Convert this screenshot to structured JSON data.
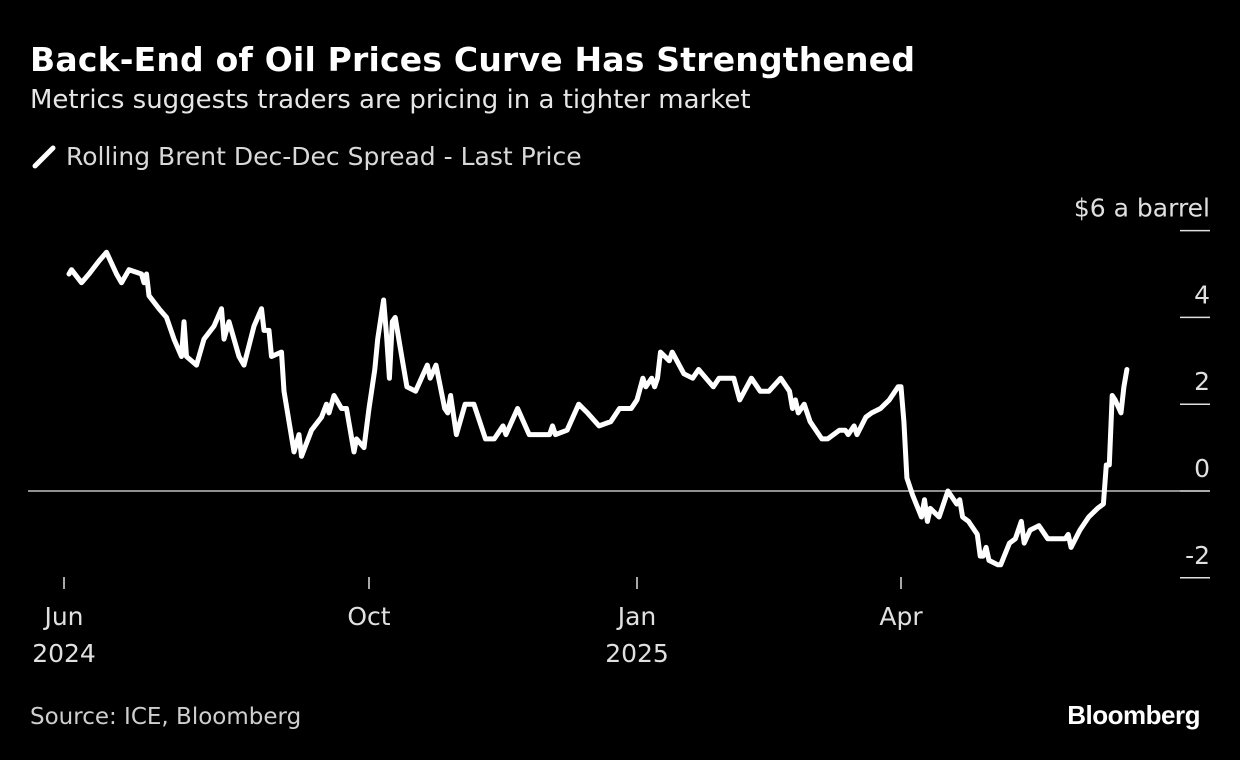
{
  "chart_data": {
    "type": "line",
    "title": "Back-End of Oil Prices Curve Has Strengthened",
    "subtitle": "Metrics suggests traders are pricing in a tighter market",
    "ylabel": "$6 a barrel",
    "ylim": [
      -2.4,
      6
    ],
    "yticks": [
      6,
      4,
      2,
      0,
      -2
    ],
    "ytick_labels": [
      "$6 a barrel",
      "4",
      "2",
      "0",
      "-2"
    ],
    "xticks": [
      {
        "date": "2024-06-01",
        "label": "Jun",
        "sublabel": "2024"
      },
      {
        "date": "2024-10-01",
        "label": "Oct",
        "sublabel": ""
      },
      {
        "date": "2025-01-01",
        "label": "Jan",
        "sublabel": "2025"
      },
      {
        "date": "2025-04-01",
        "label": "Apr",
        "sublabel": ""
      }
    ],
    "grid": false,
    "zero_line": true,
    "legend_position": "top-left",
    "colors": {
      "background": "#000000",
      "line": "#ffffff",
      "zero_line": "#bfbfbf"
    },
    "series": [
      {
        "name": "Rolling Brent Dec-Dec Spread - Last Price",
        "points": [
          [
            "2024-06-03",
            5.0
          ],
          [
            "2024-06-04",
            5.1
          ],
          [
            "2024-06-08",
            4.8
          ],
          [
            "2024-06-11",
            5.0
          ],
          [
            "2024-06-15",
            5.3
          ],
          [
            "2024-06-18",
            5.5
          ],
          [
            "2024-06-22",
            5.0
          ],
          [
            "2024-06-24",
            4.8
          ],
          [
            "2024-06-27",
            5.1
          ],
          [
            "2024-07-02",
            5.0
          ],
          [
            "2024-07-03",
            4.8
          ],
          [
            "2024-07-04",
            5.0
          ],
          [
            "2024-07-05",
            4.5
          ],
          [
            "2024-07-09",
            4.2
          ],
          [
            "2024-07-12",
            4.0
          ],
          [
            "2024-07-15",
            3.5
          ],
          [
            "2024-07-18",
            3.1
          ],
          [
            "2024-07-19",
            3.9
          ],
          [
            "2024-07-20",
            3.1
          ],
          [
            "2024-07-24",
            2.9
          ],
          [
            "2024-07-27",
            3.5
          ],
          [
            "2024-07-31",
            3.8
          ],
          [
            "2024-08-03",
            4.2
          ],
          [
            "2024-08-04",
            3.5
          ],
          [
            "2024-08-06",
            3.9
          ],
          [
            "2024-08-10",
            3.1
          ],
          [
            "2024-08-12",
            2.9
          ],
          [
            "2024-08-16",
            3.8
          ],
          [
            "2024-08-19",
            4.2
          ],
          [
            "2024-08-20",
            3.7
          ],
          [
            "2024-08-22",
            3.7
          ],
          [
            "2024-08-23",
            3.1
          ],
          [
            "2024-08-27",
            3.2
          ],
          [
            "2024-08-28",
            2.3
          ],
          [
            "2024-09-01",
            0.9
          ],
          [
            "2024-09-03",
            1.3
          ],
          [
            "2024-09-04",
            0.8
          ],
          [
            "2024-09-08",
            1.4
          ],
          [
            "2024-09-12",
            1.7
          ],
          [
            "2024-09-14",
            2.0
          ],
          [
            "2024-09-15",
            1.8
          ],
          [
            "2024-09-17",
            2.2
          ],
          [
            "2024-09-20",
            1.9
          ],
          [
            "2024-09-22",
            1.9
          ],
          [
            "2024-09-25",
            0.9
          ],
          [
            "2024-09-26",
            1.2
          ],
          [
            "2024-09-29",
            1.0
          ],
          [
            "2024-10-01",
            1.9
          ],
          [
            "2024-10-03",
            2.8
          ],
          [
            "2024-10-04",
            3.5
          ],
          [
            "2024-10-06",
            4.4
          ],
          [
            "2024-10-07",
            3.6
          ],
          [
            "2024-10-08",
            2.6
          ],
          [
            "2024-10-09",
            3.9
          ],
          [
            "2024-10-10",
            4.0
          ],
          [
            "2024-10-12",
            3.2
          ],
          [
            "2024-10-14",
            2.4
          ],
          [
            "2024-10-17",
            2.3
          ],
          [
            "2024-10-21",
            2.9
          ],
          [
            "2024-10-22",
            2.6
          ],
          [
            "2024-10-24",
            2.9
          ],
          [
            "2024-10-27",
            1.9
          ],
          [
            "2024-10-28",
            1.8
          ],
          [
            "2024-10-29",
            2.2
          ],
          [
            "2024-10-31",
            1.3
          ],
          [
            "2024-11-03",
            2.0
          ],
          [
            "2024-11-06",
            2.0
          ],
          [
            "2024-11-10",
            1.2
          ],
          [
            "2024-11-13",
            1.2
          ],
          [
            "2024-11-16",
            1.5
          ],
          [
            "2024-11-17",
            1.3
          ],
          [
            "2024-11-21",
            1.9
          ],
          [
            "2024-11-25",
            1.3
          ],
          [
            "2024-12-02",
            1.3
          ],
          [
            "2024-12-03",
            1.5
          ],
          [
            "2024-12-04",
            1.3
          ],
          [
            "2024-12-08",
            1.4
          ],
          [
            "2024-12-12",
            2.0
          ],
          [
            "2024-12-15",
            1.8
          ],
          [
            "2024-12-19",
            1.5
          ],
          [
            "2024-12-23",
            1.6
          ],
          [
            "2024-12-26",
            1.9
          ],
          [
            "2024-12-30",
            1.9
          ],
          [
            "2025-01-01",
            2.1
          ],
          [
            "2025-01-03",
            2.6
          ],
          [
            "2025-01-04",
            2.4
          ],
          [
            "2025-01-06",
            2.6
          ],
          [
            "2025-01-07",
            2.4
          ],
          [
            "2025-01-08",
            2.6
          ],
          [
            "2025-01-09",
            3.2
          ],
          [
            "2025-01-12",
            3.0
          ],
          [
            "2025-01-13",
            3.2
          ],
          [
            "2025-01-17",
            2.7
          ],
          [
            "2025-01-20",
            2.6
          ],
          [
            "2025-01-22",
            2.8
          ],
          [
            "2025-01-27",
            2.4
          ],
          [
            "2025-01-29",
            2.6
          ],
          [
            "2025-02-03",
            2.6
          ],
          [
            "2025-02-05",
            2.1
          ],
          [
            "2025-02-09",
            2.6
          ],
          [
            "2025-02-12",
            2.3
          ],
          [
            "2025-02-15",
            2.3
          ],
          [
            "2025-02-19",
            2.6
          ],
          [
            "2025-02-22",
            2.3
          ],
          [
            "2025-02-23",
            1.9
          ],
          [
            "2025-02-24",
            2.1
          ],
          [
            "2025-02-25",
            1.8
          ],
          [
            "2025-02-27",
            2.0
          ],
          [
            "2025-03-01",
            1.6
          ],
          [
            "2025-03-05",
            1.2
          ],
          [
            "2025-03-07",
            1.2
          ],
          [
            "2025-03-11",
            1.4
          ],
          [
            "2025-03-13",
            1.4
          ],
          [
            "2025-03-14",
            1.3
          ],
          [
            "2025-03-16",
            1.5
          ],
          [
            "2025-03-17",
            1.3
          ],
          [
            "2025-03-20",
            1.7
          ],
          [
            "2025-03-22",
            1.8
          ],
          [
            "2025-03-25",
            1.9
          ],
          [
            "2025-03-28",
            2.1
          ],
          [
            "2025-03-31",
            2.4
          ],
          [
            "2025-04-01",
            2.4
          ],
          [
            "2025-04-02",
            1.6
          ],
          [
            "2025-04-03",
            0.3
          ],
          [
            "2025-04-05",
            -0.1
          ],
          [
            "2025-04-08",
            -0.6
          ],
          [
            "2025-04-09",
            -0.2
          ],
          [
            "2025-04-10",
            -0.7
          ],
          [
            "2025-04-11",
            -0.4
          ],
          [
            "2025-04-14",
            -0.6
          ],
          [
            "2025-04-17",
            0.0
          ],
          [
            "2025-04-20",
            -0.3
          ],
          [
            "2025-04-21",
            -0.2
          ],
          [
            "2025-04-22",
            -0.6
          ],
          [
            "2025-04-24",
            -0.7
          ],
          [
            "2025-04-27",
            -1.0
          ],
          [
            "2025-04-28",
            -1.5
          ],
          [
            "2025-04-29",
            -1.5
          ],
          [
            "2025-04-30",
            -1.3
          ],
          [
            "2025-05-01",
            -1.6
          ],
          [
            "2025-05-04",
            -1.7
          ],
          [
            "2025-05-05",
            -1.7
          ],
          [
            "2025-05-08",
            -1.2
          ],
          [
            "2025-05-10",
            -1.1
          ],
          [
            "2025-05-12",
            -0.7
          ],
          [
            "2025-05-13",
            -1.2
          ],
          [
            "2025-05-15",
            -0.9
          ],
          [
            "2025-05-18",
            -0.8
          ],
          [
            "2025-05-21",
            -1.1
          ],
          [
            "2025-05-25",
            -1.1
          ],
          [
            "2025-05-27",
            -1.1
          ],
          [
            "2025-05-28",
            -1.0
          ],
          [
            "2025-05-29",
            -1.3
          ],
          [
            "2025-06-01",
            -0.9
          ],
          [
            "2025-06-04",
            -0.6
          ],
          [
            "2025-06-07",
            -0.4
          ],
          [
            "2025-06-09",
            -0.3
          ],
          [
            "2025-06-10",
            0.6
          ],
          [
            "2025-06-11",
            0.6
          ],
          [
            "2025-06-12",
            2.2
          ],
          [
            "2025-06-13",
            2.1
          ],
          [
            "2025-06-15",
            1.8
          ],
          [
            "2025-06-16",
            2.4
          ],
          [
            "2025-06-17",
            2.8
          ]
        ]
      }
    ],
    "source": "Source: ICE, Bloomberg",
    "logo": "Bloomberg"
  }
}
